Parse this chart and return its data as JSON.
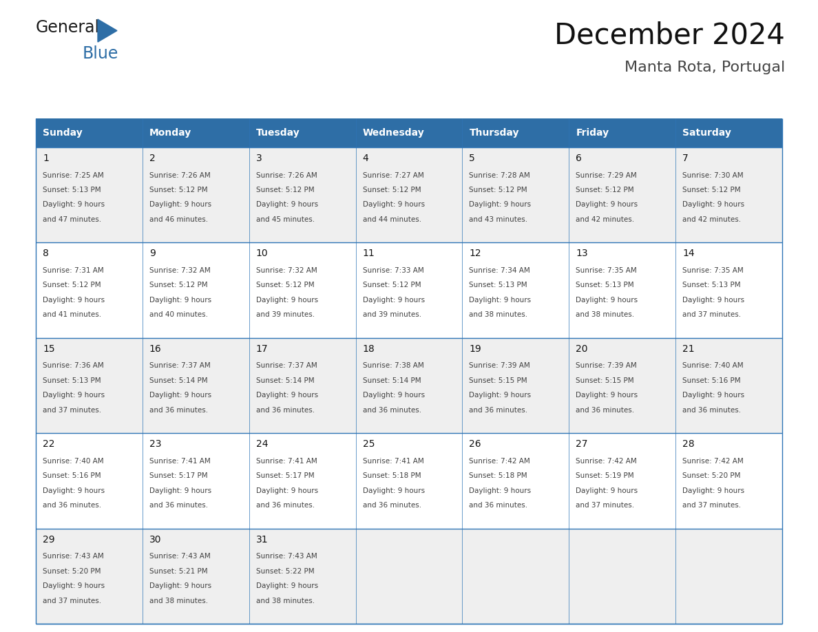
{
  "title": "December 2024",
  "subtitle": "Manta Rota, Portugal",
  "header_bg": "#2E6EA6",
  "header_text_color": "#FFFFFF",
  "cell_bg_odd": "#EFEFEF",
  "cell_bg_even": "#FFFFFF",
  "border_color": "#2E75B6",
  "text_color": "#404040",
  "day_number_color": "#111111",
  "days_of_week": [
    "Sunday",
    "Monday",
    "Tuesday",
    "Wednesday",
    "Thursday",
    "Friday",
    "Saturday"
  ],
  "calendar": [
    [
      {
        "day": 1,
        "sunrise": "7:25 AM",
        "sunset": "5:13 PM",
        "daylight_h": "9 hours",
        "daylight_m": "and 47 minutes."
      },
      {
        "day": 2,
        "sunrise": "7:26 AM",
        "sunset": "5:12 PM",
        "daylight_h": "9 hours",
        "daylight_m": "and 46 minutes."
      },
      {
        "day": 3,
        "sunrise": "7:26 AM",
        "sunset": "5:12 PM",
        "daylight_h": "9 hours",
        "daylight_m": "and 45 minutes."
      },
      {
        "day": 4,
        "sunrise": "7:27 AM",
        "sunset": "5:12 PM",
        "daylight_h": "9 hours",
        "daylight_m": "and 44 minutes."
      },
      {
        "day": 5,
        "sunrise": "7:28 AM",
        "sunset": "5:12 PM",
        "daylight_h": "9 hours",
        "daylight_m": "and 43 minutes."
      },
      {
        "day": 6,
        "sunrise": "7:29 AM",
        "sunset": "5:12 PM",
        "daylight_h": "9 hours",
        "daylight_m": "and 42 minutes."
      },
      {
        "day": 7,
        "sunrise": "7:30 AM",
        "sunset": "5:12 PM",
        "daylight_h": "9 hours",
        "daylight_m": "and 42 minutes."
      }
    ],
    [
      {
        "day": 8,
        "sunrise": "7:31 AM",
        "sunset": "5:12 PM",
        "daylight_h": "9 hours",
        "daylight_m": "and 41 minutes."
      },
      {
        "day": 9,
        "sunrise": "7:32 AM",
        "sunset": "5:12 PM",
        "daylight_h": "9 hours",
        "daylight_m": "and 40 minutes."
      },
      {
        "day": 10,
        "sunrise": "7:32 AM",
        "sunset": "5:12 PM",
        "daylight_h": "9 hours",
        "daylight_m": "and 39 minutes."
      },
      {
        "day": 11,
        "sunrise": "7:33 AM",
        "sunset": "5:12 PM",
        "daylight_h": "9 hours",
        "daylight_m": "and 39 minutes."
      },
      {
        "day": 12,
        "sunrise": "7:34 AM",
        "sunset": "5:13 PM",
        "daylight_h": "9 hours",
        "daylight_m": "and 38 minutes."
      },
      {
        "day": 13,
        "sunrise": "7:35 AM",
        "sunset": "5:13 PM",
        "daylight_h": "9 hours",
        "daylight_m": "and 38 minutes."
      },
      {
        "day": 14,
        "sunrise": "7:35 AM",
        "sunset": "5:13 PM",
        "daylight_h": "9 hours",
        "daylight_m": "and 37 minutes."
      }
    ],
    [
      {
        "day": 15,
        "sunrise": "7:36 AM",
        "sunset": "5:13 PM",
        "daylight_h": "9 hours",
        "daylight_m": "and 37 minutes."
      },
      {
        "day": 16,
        "sunrise": "7:37 AM",
        "sunset": "5:14 PM",
        "daylight_h": "9 hours",
        "daylight_m": "and 36 minutes."
      },
      {
        "day": 17,
        "sunrise": "7:37 AM",
        "sunset": "5:14 PM",
        "daylight_h": "9 hours",
        "daylight_m": "and 36 minutes."
      },
      {
        "day": 18,
        "sunrise": "7:38 AM",
        "sunset": "5:14 PM",
        "daylight_h": "9 hours",
        "daylight_m": "and 36 minutes."
      },
      {
        "day": 19,
        "sunrise": "7:39 AM",
        "sunset": "5:15 PM",
        "daylight_h": "9 hours",
        "daylight_m": "and 36 minutes."
      },
      {
        "day": 20,
        "sunrise": "7:39 AM",
        "sunset": "5:15 PM",
        "daylight_h": "9 hours",
        "daylight_m": "and 36 minutes."
      },
      {
        "day": 21,
        "sunrise": "7:40 AM",
        "sunset": "5:16 PM",
        "daylight_h": "9 hours",
        "daylight_m": "and 36 minutes."
      }
    ],
    [
      {
        "day": 22,
        "sunrise": "7:40 AM",
        "sunset": "5:16 PM",
        "daylight_h": "9 hours",
        "daylight_m": "and 36 minutes."
      },
      {
        "day": 23,
        "sunrise": "7:41 AM",
        "sunset": "5:17 PM",
        "daylight_h": "9 hours",
        "daylight_m": "and 36 minutes."
      },
      {
        "day": 24,
        "sunrise": "7:41 AM",
        "sunset": "5:17 PM",
        "daylight_h": "9 hours",
        "daylight_m": "and 36 minutes."
      },
      {
        "day": 25,
        "sunrise": "7:41 AM",
        "sunset": "5:18 PM",
        "daylight_h": "9 hours",
        "daylight_m": "and 36 minutes."
      },
      {
        "day": 26,
        "sunrise": "7:42 AM",
        "sunset": "5:18 PM",
        "daylight_h": "9 hours",
        "daylight_m": "and 36 minutes."
      },
      {
        "day": 27,
        "sunrise": "7:42 AM",
        "sunset": "5:19 PM",
        "daylight_h": "9 hours",
        "daylight_m": "and 37 minutes."
      },
      {
        "day": 28,
        "sunrise": "7:42 AM",
        "sunset": "5:20 PM",
        "daylight_h": "9 hours",
        "daylight_m": "and 37 minutes."
      }
    ],
    [
      {
        "day": 29,
        "sunrise": "7:43 AM",
        "sunset": "5:20 PM",
        "daylight_h": "9 hours",
        "daylight_m": "and 37 minutes."
      },
      {
        "day": 30,
        "sunrise": "7:43 AM",
        "sunset": "5:21 PM",
        "daylight_h": "9 hours",
        "daylight_m": "and 38 minutes."
      },
      {
        "day": 31,
        "sunrise": "7:43 AM",
        "sunset": "5:22 PM",
        "daylight_h": "9 hours",
        "daylight_m": "and 38 minutes."
      },
      null,
      null,
      null,
      null
    ]
  ],
  "logo_text_general": "General",
  "logo_text_blue": "Blue",
  "logo_color_general": "#1a1a1a",
  "logo_color_blue": "#2E6EA6",
  "logo_triangle_color": "#2E6EA6",
  "figwidth": 11.88,
  "figheight": 9.18,
  "dpi": 100
}
